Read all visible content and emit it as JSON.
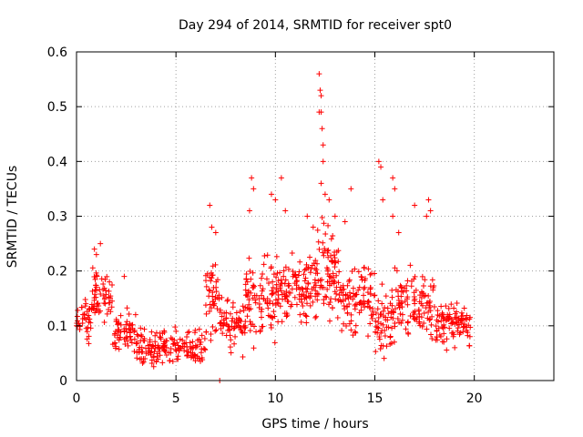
{
  "chart_data": {
    "type": "scatter",
    "title": "Day 294 of 2014, SRMTID for receiver spt0",
    "xlabel": "GPS time / hours",
    "ylabel": "SRMTID / TECUs",
    "xlim": [
      0,
      24
    ],
    "ylim": [
      0,
      0.6
    ],
    "xticks": [
      0,
      5,
      10,
      15,
      20
    ],
    "yticks": [
      0,
      0.1,
      0.2,
      0.3,
      0.4,
      0.5,
      0.6
    ],
    "grid": true,
    "marker": "plus",
    "color": "#ff0000",
    "series": [
      {
        "name": "spt0",
        "segments": [
          {
            "x_start": 0.0,
            "x_end": 0.8,
            "mean": 0.11,
            "spread": 0.04,
            "count": 40
          },
          {
            "x_start": 0.8,
            "x_end": 1.8,
            "mean": 0.15,
            "spread": 0.05,
            "count": 60
          },
          {
            "x_start": 1.8,
            "x_end": 3.0,
            "mean": 0.09,
            "spread": 0.04,
            "count": 60
          },
          {
            "x_start": 3.0,
            "x_end": 6.5,
            "mean": 0.06,
            "spread": 0.03,
            "count": 170
          },
          {
            "x_start": 6.5,
            "x_end": 7.2,
            "mean": 0.15,
            "spread": 0.07,
            "count": 45
          },
          {
            "x_start": 7.2,
            "x_end": 8.5,
            "mean": 0.1,
            "spread": 0.05,
            "count": 70
          },
          {
            "x_start": 8.5,
            "x_end": 10.5,
            "mean": 0.15,
            "spread": 0.07,
            "count": 120
          },
          {
            "x_start": 10.5,
            "x_end": 12.0,
            "mean": 0.17,
            "spread": 0.06,
            "count": 90
          },
          {
            "x_start": 12.0,
            "x_end": 13.2,
            "mean": 0.2,
            "spread": 0.08,
            "count": 90
          },
          {
            "x_start": 13.2,
            "x_end": 15.0,
            "mean": 0.15,
            "spread": 0.06,
            "count": 100
          },
          {
            "x_start": 15.0,
            "x_end": 16.0,
            "mean": 0.11,
            "spread": 0.06,
            "count": 60
          },
          {
            "x_start": 16.0,
            "x_end": 18.0,
            "mean": 0.14,
            "spread": 0.06,
            "count": 110
          },
          {
            "x_start": 18.0,
            "x_end": 19.8,
            "mean": 0.1,
            "spread": 0.04,
            "count": 100
          }
        ],
        "peaks": [
          {
            "x": 0.9,
            "y": 0.24
          },
          {
            "x": 1.0,
            "y": 0.23
          },
          {
            "x": 1.2,
            "y": 0.25
          },
          {
            "x": 2.4,
            "y": 0.19
          },
          {
            "x": 6.7,
            "y": 0.32
          },
          {
            "x": 6.8,
            "y": 0.28
          },
          {
            "x": 7.0,
            "y": 0.27
          },
          {
            "x": 7.2,
            "y": 0.0
          },
          {
            "x": 8.8,
            "y": 0.37
          },
          {
            "x": 8.9,
            "y": 0.35
          },
          {
            "x": 8.7,
            "y": 0.31
          },
          {
            "x": 9.8,
            "y": 0.34
          },
          {
            "x": 10.0,
            "y": 0.33
          },
          {
            "x": 10.3,
            "y": 0.37
          },
          {
            "x": 10.5,
            "y": 0.31
          },
          {
            "x": 11.6,
            "y": 0.3
          },
          {
            "x": 11.9,
            "y": 0.28
          },
          {
            "x": 12.2,
            "y": 0.56
          },
          {
            "x": 12.25,
            "y": 0.53
          },
          {
            "x": 12.3,
            "y": 0.52
          },
          {
            "x": 12.2,
            "y": 0.49
          },
          {
            "x": 12.3,
            "y": 0.49
          },
          {
            "x": 12.35,
            "y": 0.46
          },
          {
            "x": 12.4,
            "y": 0.43
          },
          {
            "x": 12.4,
            "y": 0.4
          },
          {
            "x": 12.3,
            "y": 0.36
          },
          {
            "x": 12.5,
            "y": 0.34
          },
          {
            "x": 12.7,
            "y": 0.33
          },
          {
            "x": 13.0,
            "y": 0.3
          },
          {
            "x": 13.8,
            "y": 0.35
          },
          {
            "x": 13.5,
            "y": 0.29
          },
          {
            "x": 15.2,
            "y": 0.4
          },
          {
            "x": 15.3,
            "y": 0.39
          },
          {
            "x": 15.4,
            "y": 0.33
          },
          {
            "x": 15.9,
            "y": 0.37
          },
          {
            "x": 16.0,
            "y": 0.35
          },
          {
            "x": 15.9,
            "y": 0.3
          },
          {
            "x": 16.2,
            "y": 0.27
          },
          {
            "x": 17.0,
            "y": 0.32
          },
          {
            "x": 17.7,
            "y": 0.33
          },
          {
            "x": 17.8,
            "y": 0.31
          },
          {
            "x": 17.6,
            "y": 0.3
          }
        ]
      }
    ]
  }
}
